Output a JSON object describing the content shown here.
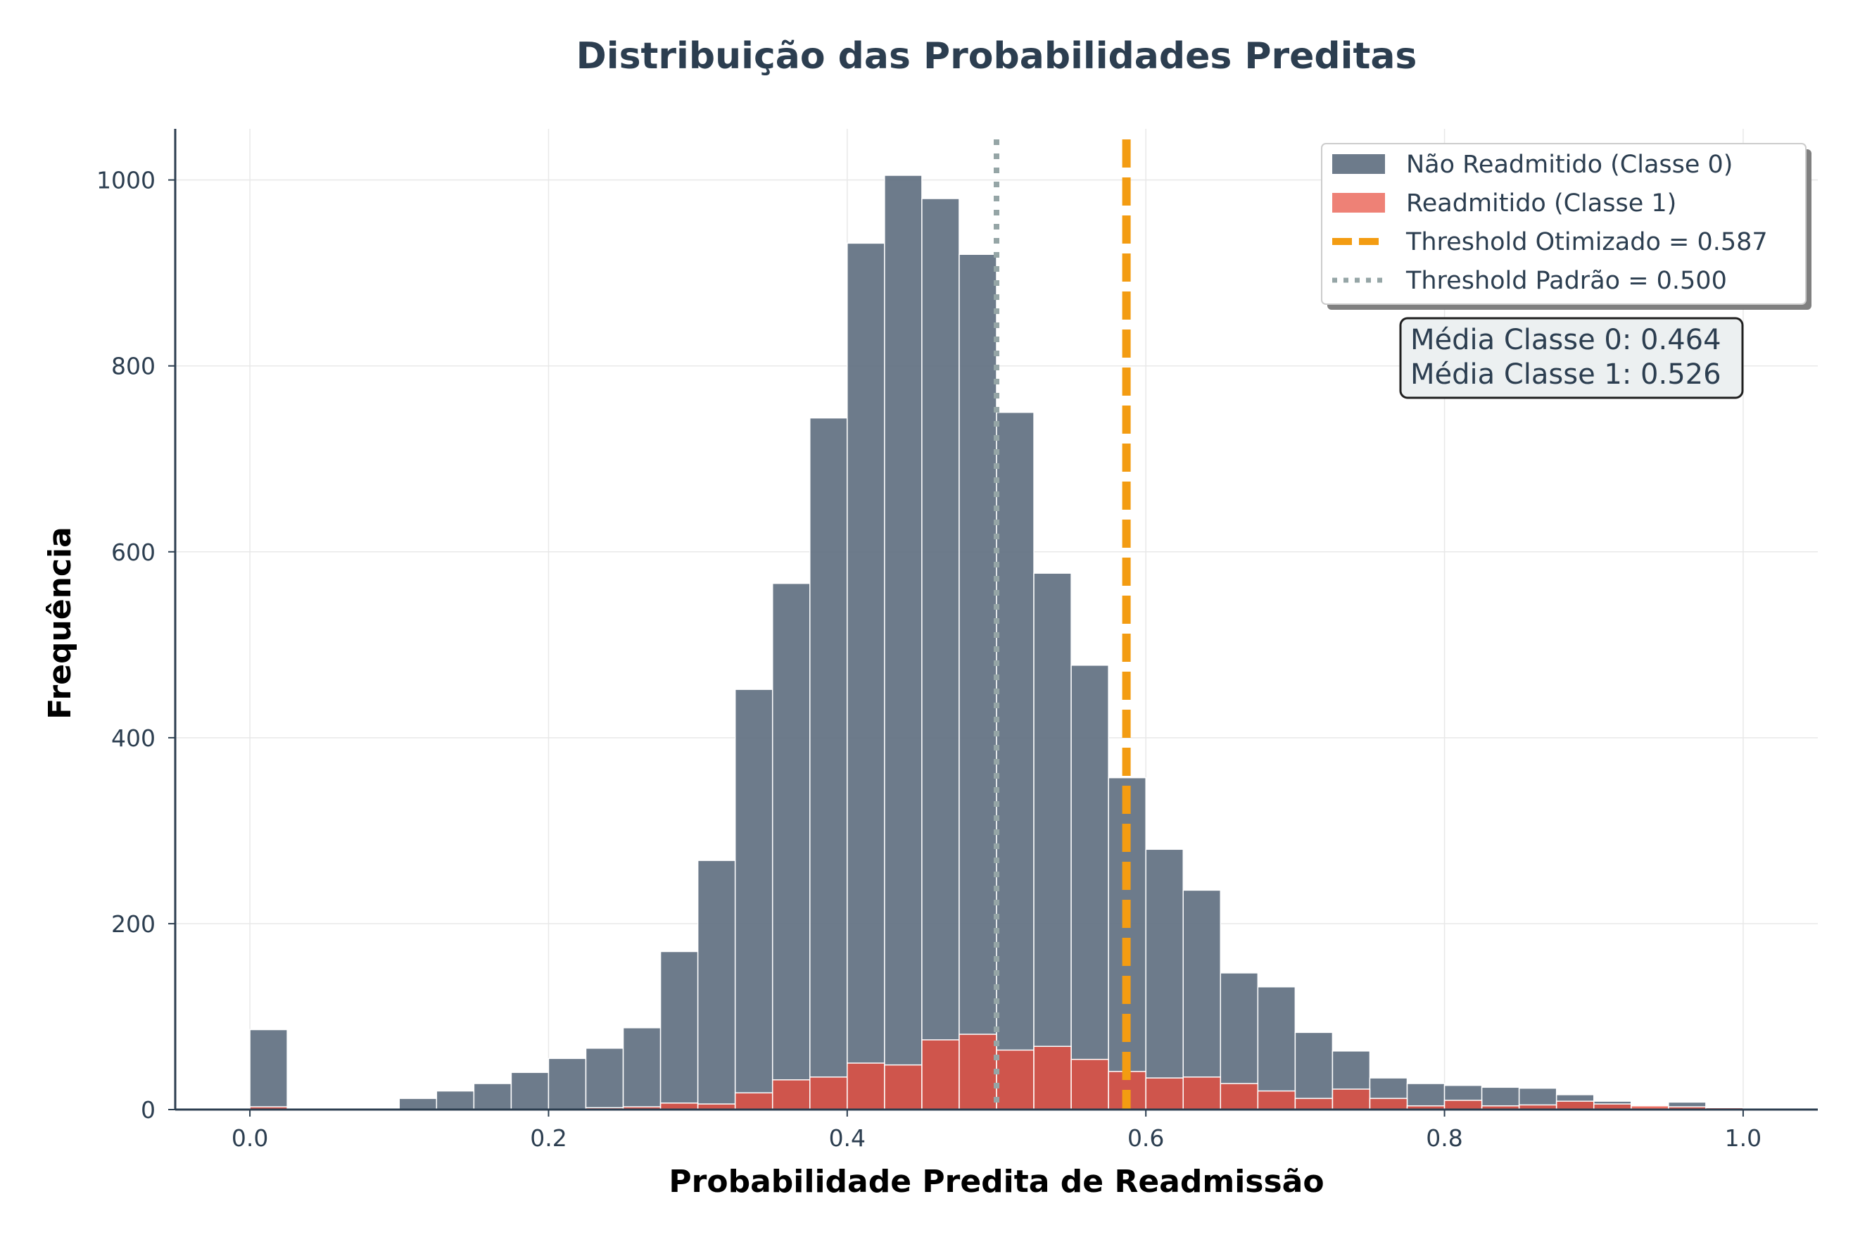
{
  "chart_data": {
    "type": "histogram",
    "title": "Distribuição das Probabilidades Preditas",
    "xlabel": "Probabilidade Predita de Readmissão",
    "ylabel": "Frequência",
    "xlim": [
      -0.05,
      1.05
    ],
    "ylim": [
      0,
      1055
    ],
    "xticks": [
      0.0,
      0.2,
      0.4,
      0.6,
      0.8,
      1.0
    ],
    "xtick_labels": [
      "0.0",
      "0.2",
      "0.4",
      "0.6",
      "0.8",
      "1.0"
    ],
    "yticks": [
      0,
      200,
      400,
      600,
      800,
      1000
    ],
    "ytick_labels": [
      "0",
      "200",
      "400",
      "600",
      "800",
      "1000"
    ],
    "grid": true,
    "bin_width": 0.025,
    "bin_start": 0.0,
    "series": [
      {
        "name": "Não Readmitido (Classe 0)",
        "color": "#5d6d7e",
        "values": [
          86,
          0,
          0,
          0,
          12,
          20,
          28,
          40,
          55,
          66,
          88,
          170,
          268,
          452,
          566,
          744,
          932,
          1005,
          980,
          920,
          750,
          577,
          478,
          357,
          280,
          236,
          147,
          132,
          83,
          63,
          34,
          28,
          26,
          24,
          23,
          16,
          9,
          0,
          8,
          2
        ]
      },
      {
        "name": "Readmitido (Classe 1)",
        "color": "#e74c3c",
        "values": [
          3,
          0,
          0,
          0,
          0,
          0,
          0,
          0,
          0,
          2,
          3,
          7,
          6,
          18,
          32,
          35,
          50,
          48,
          75,
          81,
          64,
          68,
          54,
          41,
          34,
          35,
          28,
          20,
          12,
          22,
          12,
          4,
          10,
          4,
          5,
          9,
          6,
          4,
          3,
          2
        ]
      }
    ],
    "thresholds": [
      {
        "name": "Threshold Otimizado = 0.587",
        "value": 0.587,
        "color": "#f39c12",
        "style": "dashed"
      },
      {
        "name": "Threshold Padrão = 0.500",
        "value": 0.5,
        "color": "#95a5a6",
        "style": "dotted"
      }
    ],
    "legend_position": "top-right",
    "stats": [
      "Média Classe 0: 0.464",
      "Média Classe 1: 0.526"
    ]
  }
}
